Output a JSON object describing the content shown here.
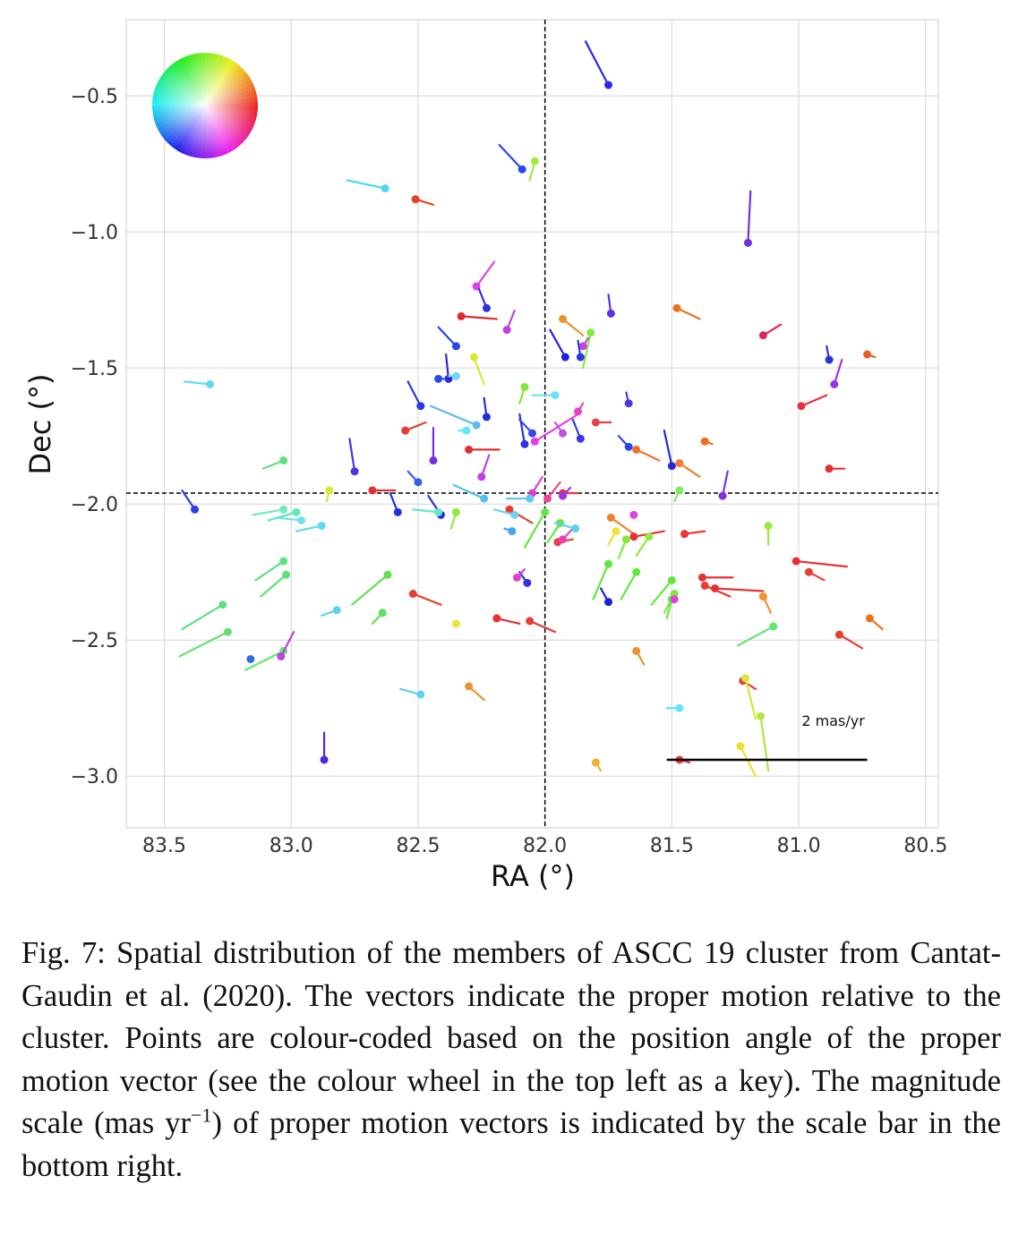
{
  "chart_data": {
    "type": "scatter",
    "xlabel": "RA (°)",
    "ylabel": "Dec (°)",
    "xlim": [
      83.65,
      80.45
    ],
    "ylim": [
      -3.19,
      -0.22
    ],
    "x_inverted": true,
    "xticks": [
      83.5,
      83.0,
      82.5,
      82.0,
      81.5,
      81.0,
      80.5
    ],
    "xtick_labels": [
      "83.5",
      "83.0",
      "82.5",
      "82.0",
      "81.5",
      "81.0",
      "80.5"
    ],
    "yticks": [
      -0.5,
      -1.0,
      -1.5,
      -2.0,
      -2.5,
      -3.0
    ],
    "ytick_labels": [
      "−0.5",
      "−1.0",
      "−1.5",
      "−2.0",
      "−2.5",
      "−3.0"
    ],
    "grid": true,
    "cluster_center": {
      "ra": 82.0,
      "dec": -1.96
    },
    "scale_bar": {
      "label": "2 mas/yr",
      "magnitude_mas_per_yr": 2,
      "ra_start": 81.52,
      "ra_end": 80.73,
      "dec": -2.94
    },
    "colour_wheel_position": "top-left",
    "colour_key": "position angle of proper motion vector",
    "points": [
      {
        "ra": 81.75,
        "dec": -0.46,
        "color": "#2828ee",
        "dra": 0.09,
        "ddec": 0.16
      },
      {
        "ra": 82.09,
        "dec": -0.77,
        "color": "#2848ee",
        "dra": 0.09,
        "ddec": 0.09
      },
      {
        "ra": 82.04,
        "dec": -0.74,
        "color": "#a0ee38",
        "dra": 0.02,
        "ddec": -0.07
      },
      {
        "ra": 82.63,
        "dec": -0.84,
        "color": "#50d8f0",
        "dra": 0.15,
        "ddec": 0.03
      },
      {
        "ra": 82.51,
        "dec": -0.88,
        "color": "#e84020",
        "dra": -0.07,
        "ddec": -0.02
      },
      {
        "ra": 81.2,
        "dec": -1.04,
        "color": "#7030e0",
        "dra": -0.01,
        "ddec": 0.19
      },
      {
        "ra": 82.27,
        "dec": -1.2,
        "color": "#e040e0",
        "dra": -0.07,
        "ddec": 0.09
      },
      {
        "ra": 82.23,
        "dec": -1.28,
        "color": "#3030e0",
        "dra": 0.03,
        "ddec": 0.07
      },
      {
        "ra": 82.33,
        "dec": -1.31,
        "color": "#e02828",
        "dra": -0.14,
        "ddec": -0.01
      },
      {
        "ra": 82.15,
        "dec": -1.36,
        "color": "#c040e8",
        "dra": -0.03,
        "ddec": 0.07
      },
      {
        "ra": 81.74,
        "dec": -1.3,
        "color": "#6030e0",
        "dra": 0.01,
        "ddec": 0.07
      },
      {
        "ra": 81.48,
        "dec": -1.28,
        "color": "#f07020",
        "dra": -0.09,
        "ddec": -0.04
      },
      {
        "ra": 81.14,
        "dec": -1.38,
        "color": "#e02858",
        "dra": -0.07,
        "ddec": 0.04
      },
      {
        "ra": 81.93,
        "dec": -1.32,
        "color": "#f09030",
        "dra": -0.08,
        "ddec": -0.06
      },
      {
        "ra": 82.35,
        "dec": -1.42,
        "color": "#2848e8",
        "dra": 0.07,
        "ddec": 0.07
      },
      {
        "ra": 82.28,
        "dec": -1.46,
        "color": "#d8e838",
        "dra": -0.04,
        "ddec": -0.1
      },
      {
        "ra": 81.82,
        "dec": -1.37,
        "color": "#80ee40",
        "dra": 0.03,
        "ddec": -0.13
      },
      {
        "ra": 81.85,
        "dec": -1.42,
        "color": "#c840e0",
        "dra": -0.02,
        "ddec": 0.03
      },
      {
        "ra": 81.92,
        "dec": -1.46,
        "color": "#2020e0",
        "dra": 0.06,
        "ddec": 0.1
      },
      {
        "ra": 81.86,
        "dec": -1.46,
        "color": "#2838e8",
        "dra": 0.01,
        "ddec": 0.06
      },
      {
        "ra": 82.38,
        "dec": -1.54,
        "color": "#2828d8",
        "dra": 0.01,
        "ddec": 0.09
      },
      {
        "ra": 82.42,
        "dec": -1.54,
        "color": "#2848f0",
        "dra": -0.03,
        "ddec": 0.0
      },
      {
        "ra": 82.35,
        "dec": -1.53,
        "color": "#70d8f8",
        "dra": 0.03,
        "ddec": 0.0
      },
      {
        "ra": 80.88,
        "dec": -1.47,
        "color": "#3030e0",
        "dra": 0.01,
        "ddec": 0.05
      },
      {
        "ra": 80.73,
        "dec": -1.45,
        "color": "#e86020",
        "dra": -0.03,
        "ddec": -0.01
      },
      {
        "ra": 83.32,
        "dec": -1.56,
        "color": "#60d8f8",
        "dra": 0.1,
        "ddec": 0.01
      },
      {
        "ra": 82.08,
        "dec": -1.57,
        "color": "#80e840",
        "dra": 0.02,
        "ddec": -0.06
      },
      {
        "ra": 82.49,
        "dec": -1.64,
        "color": "#2838e8",
        "dra": 0.05,
        "ddec": 0.09
      },
      {
        "ra": 81.96,
        "dec": -1.6,
        "color": "#70e0f8",
        "dra": 0.09,
        "ddec": 0.0
      },
      {
        "ra": 80.86,
        "dec": -1.56,
        "color": "#a030e8",
        "dra": -0.03,
        "ddec": 0.09
      },
      {
        "ra": 80.99,
        "dec": -1.64,
        "color": "#e83040",
        "dra": -0.1,
        "ddec": 0.04
      },
      {
        "ra": 81.67,
        "dec": -1.63,
        "color": "#5038e0",
        "dra": 0.01,
        "ddec": 0.04
      },
      {
        "ra": 82.55,
        "dec": -1.73,
        "color": "#e83838",
        "dra": -0.08,
        "ddec": 0.03
      },
      {
        "ra": 82.27,
        "dec": -1.71,
        "color": "#60b8f0",
        "dra": 0.18,
        "ddec": 0.07
      },
      {
        "ra": 82.31,
        "dec": -1.73,
        "color": "#60e8f8",
        "dra": 0.03,
        "ddec": 0.0
      },
      {
        "ra": 82.23,
        "dec": -1.68,
        "color": "#2030e0",
        "dra": 0.01,
        "ddec": 0.07
      },
      {
        "ra": 82.08,
        "dec": -1.78,
        "color": "#3030e0",
        "dra": 0.02,
        "ddec": 0.11
      },
      {
        "ra": 82.05,
        "dec": -1.74,
        "color": "#3848e8",
        "dra": 0.05,
        "ddec": 0.05
      },
      {
        "ra": 82.04,
        "dec": -1.77,
        "color": "#e040e0",
        "dra": -0.17,
        "ddec": 0.1
      },
      {
        "ra": 81.93,
        "dec": -1.74,
        "color": "#c050e0",
        "dra": 0.03,
        "ddec": 0.04
      },
      {
        "ra": 81.87,
        "dec": -1.66,
        "color": "#e840c8",
        "dra": -0.02,
        "ddec": 0.03
      },
      {
        "ra": 81.86,
        "dec": -1.76,
        "color": "#3838e8",
        "dra": 0.03,
        "ddec": 0.07
      },
      {
        "ra": 81.8,
        "dec": -1.7,
        "color": "#e84040",
        "dra": -0.06,
        "ddec": 0.0
      },
      {
        "ra": 81.67,
        "dec": -1.79,
        "color": "#2848e8",
        "dra": 0.04,
        "ddec": 0.04
      },
      {
        "ra": 81.64,
        "dec": -1.8,
        "color": "#f07030",
        "dra": -0.09,
        "ddec": -0.04
      },
      {
        "ra": 81.37,
        "dec": -1.77,
        "color": "#f07020",
        "dra": -0.03,
        "ddec": -0.01
      },
      {
        "ra": 82.44,
        "dec": -1.84,
        "color": "#7030e0",
        "dra": 0.0,
        "ddec": 0.12
      },
      {
        "ra": 82.3,
        "dec": -1.8,
        "color": "#e03030",
        "dra": -0.12,
        "ddec": 0.0
      },
      {
        "ra": 82.75,
        "dec": -1.88,
        "color": "#5030e0",
        "dra": 0.02,
        "ddec": 0.12
      },
      {
        "ra": 83.03,
        "dec": -1.84,
        "color": "#60e080",
        "dra": 0.08,
        "ddec": -0.03
      },
      {
        "ra": 81.5,
        "dec": -1.86,
        "color": "#2828d8",
        "dra": 0.03,
        "ddec": 0.13
      },
      {
        "ra": 81.47,
        "dec": -1.85,
        "color": "#f08030",
        "dra": -0.08,
        "ddec": -0.05
      },
      {
        "ra": 80.88,
        "dec": -1.87,
        "color": "#e83030",
        "dra": -0.06,
        "ddec": 0.0
      },
      {
        "ra": 82.25,
        "dec": -1.9,
        "color": "#c040e8",
        "dra": -0.03,
        "ddec": 0.08
      },
      {
        "ra": 82.5,
        "dec": -1.92,
        "color": "#3060e8",
        "dra": 0.04,
        "ddec": 0.04
      },
      {
        "ra": 82.68,
        "dec": -1.95,
        "color": "#e83030",
        "dra": -0.09,
        "ddec": 0.0
      },
      {
        "ra": 82.85,
        "dec": -1.95,
        "color": "#d8e838",
        "dra": 0.01,
        "ddec": -0.04
      },
      {
        "ra": 82.24,
        "dec": -1.98,
        "color": "#50c0f0",
        "dra": 0.12,
        "ddec": 0.05
      },
      {
        "ra": 82.05,
        "dec": -1.96,
        "color": "#e040d0",
        "dra": -0.04,
        "ddec": 0.06
      },
      {
        "ra": 82.06,
        "dec": -1.98,
        "color": "#60c8f0",
        "dra": 0.09,
        "ddec": 0.0
      },
      {
        "ra": 81.99,
        "dec": -1.98,
        "color": "#e84898",
        "dra": -0.05,
        "ddec": 0.06
      },
      {
        "ra": 81.93,
        "dec": -1.96,
        "color": "#e83838",
        "dra": -0.06,
        "ddec": 0.0
      },
      {
        "ra": 81.93,
        "dec": -1.97,
        "color": "#a030e8",
        "dra": -0.03,
        "ddec": 0.03
      },
      {
        "ra": 81.47,
        "dec": -1.95,
        "color": "#80e860",
        "dra": 0.02,
        "ddec": -0.04
      },
      {
        "ra": 81.3,
        "dec": -1.97,
        "color": "#8030e0",
        "dra": -0.02,
        "ddec": 0.09
      },
      {
        "ra": 81.12,
        "dec": -2.08,
        "color": "#a0e840",
        "dra": 0.0,
        "ddec": -0.07
      },
      {
        "ra": 83.38,
        "dec": -2.02,
        "color": "#3040e0",
        "dra": 0.05,
        "ddec": 0.07
      },
      {
        "ra": 83.03,
        "dec": -2.02,
        "color": "#70e8c0",
        "dra": 0.12,
        "ddec": -0.02
      },
      {
        "ra": 82.98,
        "dec": -2.03,
        "color": "#60e8b0",
        "dra": 0.11,
        "ddec": -0.03
      },
      {
        "ra": 82.96,
        "dec": -2.06,
        "color": "#70e0f0",
        "dra": 0.1,
        "ddec": 0.01
      },
      {
        "ra": 82.88,
        "dec": -2.08,
        "color": "#60d8f0",
        "dra": 0.1,
        "ddec": -0.02
      },
      {
        "ra": 82.58,
        "dec": -2.03,
        "color": "#2830e0",
        "dra": 0.03,
        "ddec": 0.07
      },
      {
        "ra": 82.41,
        "dec": -2.04,
        "color": "#2830e8",
        "dra": 0.05,
        "ddec": 0.07
      },
      {
        "ra": 82.42,
        "dec": -2.03,
        "color": "#60e8c8",
        "dra": 0.1,
        "ddec": 0.01
      },
      {
        "ra": 82.35,
        "dec": -2.03,
        "color": "#90e840",
        "dra": 0.02,
        "ddec": -0.06
      },
      {
        "ra": 82.14,
        "dec": -2.02,
        "color": "#e84030",
        "dra": -0.09,
        "ddec": -0.05
      },
      {
        "ra": 82.12,
        "dec": -2.04,
        "color": "#70d0f0",
        "dra": 0.08,
        "ddec": 0.02
      },
      {
        "ra": 82.13,
        "dec": -2.1,
        "color": "#40a8f0",
        "dra": 0.03,
        "ddec": 0.01
      },
      {
        "ra": 82.0,
        "dec": -2.03,
        "color": "#60e840",
        "dra": 0.08,
        "ddec": -0.13
      },
      {
        "ra": 81.94,
        "dec": -2.07,
        "color": "#60e840",
        "dra": 0.05,
        "ddec": -0.07
      },
      {
        "ra": 81.95,
        "dec": -2.14,
        "color": "#e84040",
        "dra": -0.06,
        "ddec": 0.01
      },
      {
        "ra": 81.93,
        "dec": -2.13,
        "color": "#e840b8",
        "dra": -0.05,
        "ddec": 0.05
      },
      {
        "ra": 81.88,
        "dec": -2.09,
        "color": "#60d0f0",
        "dra": 0.08,
        "ddec": 0.02
      },
      {
        "ra": 81.74,
        "dec": -2.05,
        "color": "#f08030",
        "dra": -0.09,
        "ddec": -0.06
      },
      {
        "ra": 81.72,
        "dec": -2.1,
        "color": "#f0e038",
        "dra": 0.03,
        "ddec": -0.05
      },
      {
        "ra": 81.68,
        "dec": -2.13,
        "color": "#80e840",
        "dra": 0.03,
        "ddec": -0.07
      },
      {
        "ra": 81.65,
        "dec": -2.04,
        "color": "#e040e0",
        "dra": 0.0,
        "ddec": 0.0
      },
      {
        "ra": 81.65,
        "dec": -2.12,
        "color": "#e83030",
        "dra": -0.12,
        "ddec": 0.02
      },
      {
        "ra": 81.59,
        "dec": -2.12,
        "color": "#90e840",
        "dra": 0.05,
        "ddec": -0.07
      },
      {
        "ra": 81.45,
        "dec": -2.11,
        "color": "#e83838",
        "dra": -0.08,
        "ddec": 0.01
      },
      {
        "ra": 81.75,
        "dec": -2.22,
        "color": "#60e840",
        "dra": 0.06,
        "ddec": -0.13
      },
      {
        "ra": 81.64,
        "dec": -2.25,
        "color": "#60e840",
        "dra": 0.06,
        "ddec": -0.1
      },
      {
        "ra": 81.5,
        "dec": -2.28,
        "color": "#60e840",
        "dra": 0.08,
        "ddec": -0.09
      },
      {
        "ra": 81.38,
        "dec": -2.27,
        "color": "#e83030",
        "dra": -0.12,
        "ddec": 0.0
      },
      {
        "ra": 81.37,
        "dec": -2.3,
        "color": "#e84030",
        "dra": -0.1,
        "ddec": -0.04
      },
      {
        "ra": 81.33,
        "dec": -2.31,
        "color": "#e83030",
        "dra": -0.19,
        "ddec": -0.01
      },
      {
        "ra": 81.14,
        "dec": -2.34,
        "color": "#f09030",
        "dra": -0.03,
        "ddec": -0.06
      },
      {
        "ra": 81.01,
        "dec": -2.21,
        "color": "#e83030",
        "dra": -0.2,
        "ddec": -0.02
      },
      {
        "ra": 80.96,
        "dec": -2.25,
        "color": "#e84030",
        "dra": -0.06,
        "ddec": -0.03
      },
      {
        "ra": 82.07,
        "dec": -2.29,
        "color": "#3030e0",
        "dra": 0.03,
        "ddec": 0.04
      },
      {
        "ra": 82.11,
        "dec": -2.27,
        "color": "#e040d0",
        "dra": -0.03,
        "ddec": 0.03
      },
      {
        "ra": 81.49,
        "dec": -2.33,
        "color": "#80e840",
        "dra": 0.04,
        "ddec": -0.07
      },
      {
        "ra": 81.5,
        "dec": -2.35,
        "color": "#60e840",
        "dra": 0.02,
        "ddec": -0.07
      },
      {
        "ra": 81.49,
        "dec": -2.35,
        "color": "#e040d8",
        "dra": 0.0,
        "ddec": 0.0
      },
      {
        "ra": 81.75,
        "dec": -2.36,
        "color": "#2020d8",
        "dra": 0.03,
        "ddec": 0.05
      },
      {
        "ra": 83.03,
        "dec": -2.21,
        "color": "#60e080",
        "dra": 0.11,
        "ddec": -0.07
      },
      {
        "ra": 83.02,
        "dec": -2.26,
        "color": "#60e070",
        "dra": 0.1,
        "ddec": -0.08
      },
      {
        "ra": 82.62,
        "dec": -2.26,
        "color": "#60e050",
        "dra": 0.14,
        "ddec": -0.11
      },
      {
        "ra": 82.52,
        "dec": -2.33,
        "color": "#e84030",
        "dra": -0.11,
        "ddec": -0.04
      },
      {
        "ra": 82.64,
        "dec": -2.4,
        "color": "#60e060",
        "dra": 0.04,
        "ddec": -0.04
      },
      {
        "ra": 82.35,
        "dec": -2.44,
        "color": "#e0e840",
        "dra": 0.0,
        "ddec": 0.0
      },
      {
        "ra": 82.19,
        "dec": -2.42,
        "color": "#e83030",
        "dra": -0.09,
        "ddec": -0.02
      },
      {
        "ra": 82.06,
        "dec": -2.43,
        "color": "#e83838",
        "dra": -0.1,
        "ddec": -0.04
      },
      {
        "ra": 83.27,
        "dec": -2.37,
        "color": "#60e080",
        "dra": 0.16,
        "ddec": -0.09
      },
      {
        "ra": 83.25,
        "dec": -2.47,
        "color": "#60e070",
        "dra": 0.19,
        "ddec": -0.09
      },
      {
        "ra": 82.82,
        "dec": -2.39,
        "color": "#60d0f0",
        "dra": 0.06,
        "ddec": -0.02
      },
      {
        "ra": 83.03,
        "dec": -2.54,
        "color": "#60e870",
        "dra": 0.15,
        "ddec": -0.07
      },
      {
        "ra": 83.04,
        "dec": -2.56,
        "color": "#c040e0",
        "dra": -0.05,
        "ddec": 0.09
      },
      {
        "ra": 83.16,
        "dec": -2.57,
        "color": "#3070e0",
        "dra": 0.0,
        "ddec": 0.0
      },
      {
        "ra": 81.1,
        "dec": -2.45,
        "color": "#60e870",
        "dra": 0.14,
        "ddec": -0.07
      },
      {
        "ra": 81.64,
        "dec": -2.54,
        "color": "#f09030",
        "dra": -0.03,
        "ddec": -0.05
      },
      {
        "ra": 80.84,
        "dec": -2.48,
        "color": "#e84030",
        "dra": -0.09,
        "ddec": -0.05
      },
      {
        "ra": 80.72,
        "dec": -2.42,
        "color": "#f07020",
        "dra": -0.05,
        "ddec": -0.04
      },
      {
        "ra": 82.49,
        "dec": -2.7,
        "color": "#60d0f0",
        "dra": 0.08,
        "ddec": 0.02
      },
      {
        "ra": 82.3,
        "dec": -2.67,
        "color": "#f09030",
        "dra": -0.06,
        "ddec": -0.05
      },
      {
        "ra": 81.22,
        "dec": -2.65,
        "color": "#e84030",
        "dra": -0.05,
        "ddec": -0.03
      },
      {
        "ra": 81.21,
        "dec": -2.64,
        "color": "#d8e838",
        "dra": -0.04,
        "ddec": -0.15
      },
      {
        "ra": 81.15,
        "dec": -2.78,
        "color": "#b0e840",
        "dra": -0.03,
        "ddec": -0.2
      },
      {
        "ra": 81.23,
        "dec": -2.89,
        "color": "#f0e030",
        "dra": -0.06,
        "ddec": -0.11
      },
      {
        "ra": 81.47,
        "dec": -2.75,
        "color": "#60e8f8",
        "dra": 0.05,
        "ddec": 0.0
      },
      {
        "ra": 81.47,
        "dec": -2.94,
        "color": "#e84030",
        "dra": -0.04,
        "ddec": -0.01
      },
      {
        "ra": 81.8,
        "dec": -2.95,
        "color": "#f0b030",
        "dra": -0.02,
        "ddec": -0.03
      },
      {
        "ra": 82.87,
        "dec": -2.94,
        "color": "#5028e0",
        "dra": 0.0,
        "ddec": 0.1
      }
    ]
  },
  "caption": {
    "main": "Fig. 7: Spatial distribution of the members of ASCC 19 cluster from Cantat-Gaudin et al. (2020). The vectors indicate the proper motion relative to the cluster. Points are colour-coded based on the position angle of the proper motion vector (see the colour wheel in the top left as a key). The magnitude scale (mas yr",
    "sup": "−1",
    "tail": ") of proper motion vectors is indicated by the scale bar in the bottom right."
  }
}
